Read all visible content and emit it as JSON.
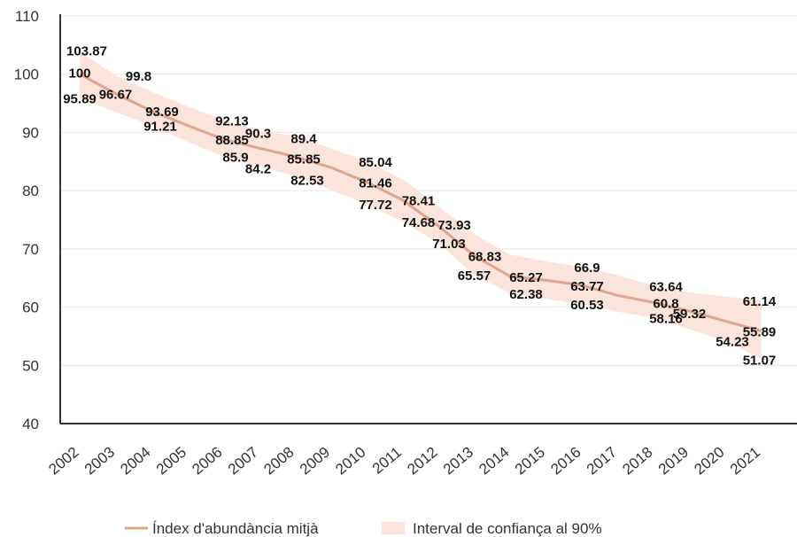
{
  "chart_data": {
    "type": "line",
    "x": [
      "2002",
      "2003",
      "2004",
      "2005",
      "2006",
      "2007",
      "2008",
      "2009",
      "2010",
      "2011",
      "2012",
      "2013",
      "2014",
      "2015",
      "2016",
      "2017",
      "2018",
      "2019",
      "2020",
      "2021"
    ],
    "series": [
      {
        "name": "Índex d'abundància mitjà",
        "color": "#e0a58a",
        "values": [
          100,
          96.67,
          93.69,
          91.2,
          88.85,
          87.3,
          85.85,
          84.0,
          81.46,
          78.41,
          73.93,
          68.83,
          65.27,
          64.6,
          63.77,
          62.0,
          60.8,
          59.32,
          57.6,
          55.89
        ]
      }
    ],
    "band": {
      "name": "Interval de confiança al 90%",
      "color": "#fbe4dc",
      "upper": [
        103.87,
        99.8,
        97.0,
        94.5,
        92.13,
        90.3,
        89.4,
        87.3,
        85.04,
        82.0,
        77.3,
        72.5,
        69.0,
        67.9,
        66.9,
        65.5,
        63.64,
        62.5,
        61.8,
        61.14
      ],
      "lower": [
        95.89,
        93.5,
        91.21,
        88.4,
        85.9,
        84.2,
        82.53,
        80.1,
        77.72,
        74.68,
        71.03,
        65.57,
        62.38,
        61.4,
        60.53,
        59.2,
        58.16,
        56.2,
        54.23,
        51.07
      ]
    },
    "data_labels": [
      {
        "x": "2002",
        "text": "103.87",
        "value": 103.87
      },
      {
        "x": "2002",
        "text": "100",
        "value": 100
      },
      {
        "x": "2002",
        "text": "95.89",
        "value": 95.89
      },
      {
        "x": "2003",
        "text": "99.8",
        "value": 99.8
      },
      {
        "x": "2003",
        "text": "96.67",
        "value": 96.67
      },
      {
        "x": "2004",
        "text": "93.69",
        "value": 93.69
      },
      {
        "x": "2004",
        "text": "91.21",
        "value": 91.21
      },
      {
        "x": "2006",
        "text": "92.13",
        "value": 92.13
      },
      {
        "x": "2006",
        "text": "88.85",
        "value": 88.85
      },
      {
        "x": "2006",
        "text": "85.9",
        "value": 85.9
      },
      {
        "x": "2007",
        "text": "90.3",
        "value": 90.3
      },
      {
        "x": "2007",
        "text": "84.2",
        "value": 84.2
      },
      {
        "x": "2008",
        "text": "89.4",
        "value": 89.4
      },
      {
        "x": "2008",
        "text": "85.85",
        "value": 85.85
      },
      {
        "x": "2008",
        "text": "82.53",
        "value": 82.53
      },
      {
        "x": "2010",
        "text": "85.04",
        "value": 85.04
      },
      {
        "x": "2010",
        "text": "81.46",
        "value": 81.46
      },
      {
        "x": "2010",
        "text": "77.72",
        "value": 77.72
      },
      {
        "x": "2011",
        "text": "78.41",
        "value": 78.41
      },
      {
        "x": "2011",
        "text": "74.68",
        "value": 74.68
      },
      {
        "x": "2012",
        "text": "73.93",
        "value": 73.93
      },
      {
        "x": "2012",
        "text": "71.03",
        "value": 71.03
      },
      {
        "x": "2013",
        "text": "68.83",
        "value": 68.83
      },
      {
        "x": "2013",
        "text": "65.57",
        "value": 65.57
      },
      {
        "x": "2014",
        "text": "65.27",
        "value": 65.27
      },
      {
        "x": "2014",
        "text": "62.38",
        "value": 62.38
      },
      {
        "x": "2016",
        "text": "66.9",
        "value": 66.9
      },
      {
        "x": "2016",
        "text": "63.77",
        "value": 63.77
      },
      {
        "x": "2016",
        "text": "60.53",
        "value": 60.53
      },
      {
        "x": "2018",
        "text": "63.64",
        "value": 63.64
      },
      {
        "x": "2018",
        "text": "60.8",
        "value": 60.8
      },
      {
        "x": "2018",
        "text": "58.16",
        "value": 58.16
      },
      {
        "x": "2019",
        "text": "59.32",
        "value": 59.32
      },
      {
        "x": "2020",
        "text": "54.23",
        "value": 54.23
      },
      {
        "x": "2021",
        "text": "61.14",
        "value": 61.14
      },
      {
        "x": "2021",
        "text": "55.89",
        "value": 55.89
      },
      {
        "x": "2021",
        "text": "51.07",
        "value": 51.07
      }
    ],
    "ylim": [
      40,
      110
    ],
    "yticks": [
      40,
      50,
      60,
      70,
      80,
      90,
      100,
      110
    ],
    "grid": true,
    "legend_position": "bottom",
    "title": "",
    "xlabel": "",
    "ylabel": ""
  }
}
